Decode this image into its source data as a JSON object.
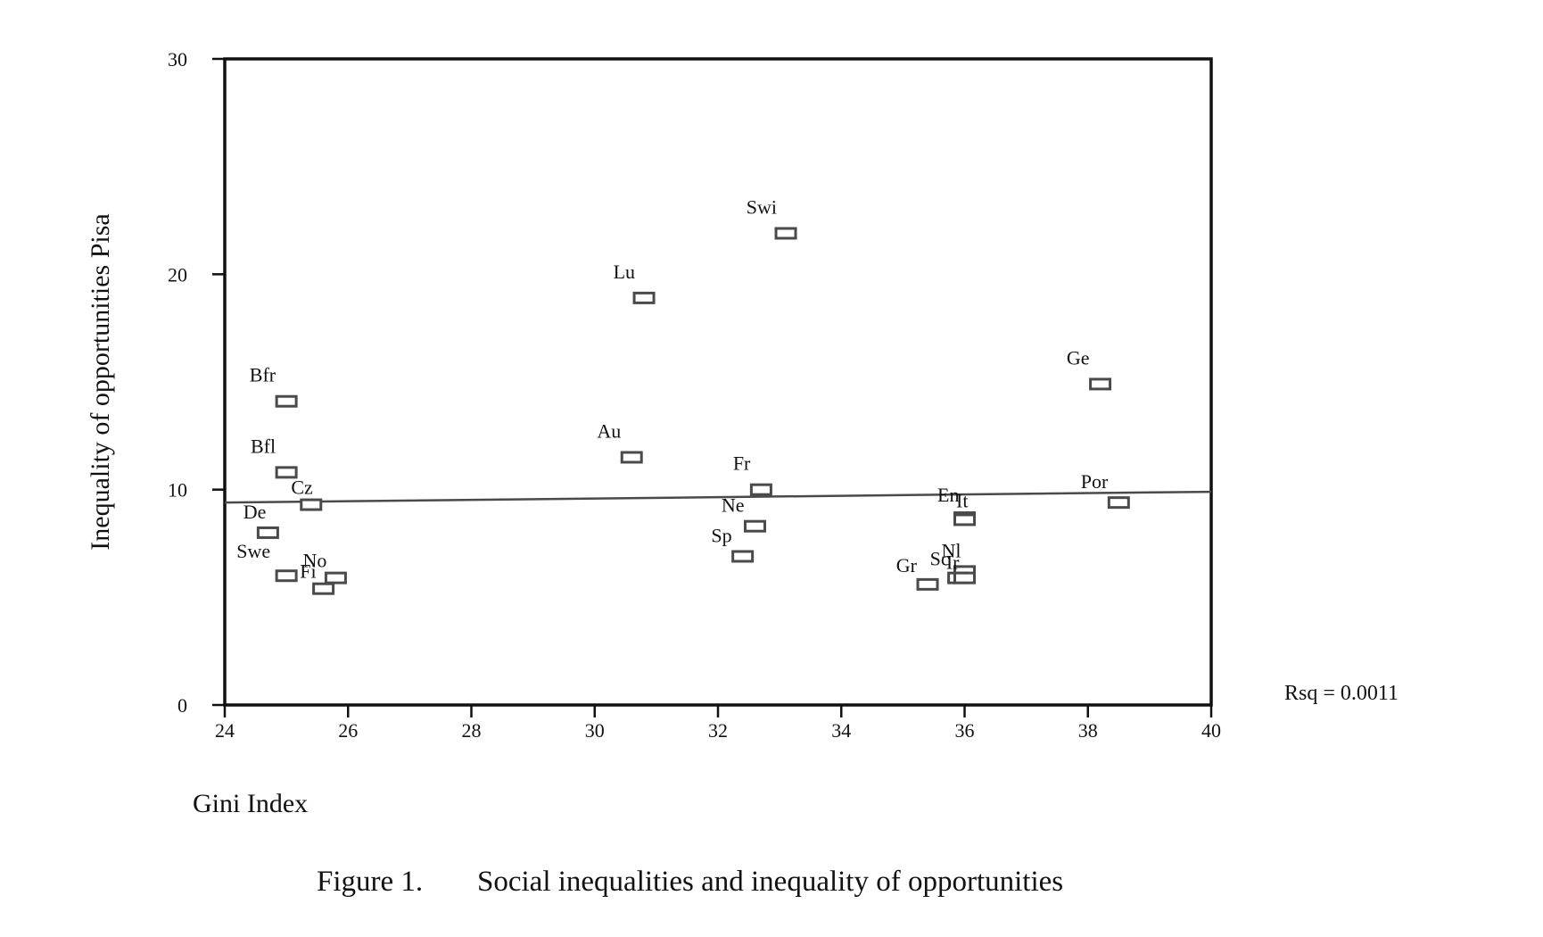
{
  "caption": {
    "figure_number": "Figure 1.",
    "title": "Social inequalities and inequality of opportunities"
  },
  "colors": {
    "axis": "#111111",
    "marker": "#4a4a4a",
    "fit_line": "#4a4a4a"
  },
  "chart_data": {
    "type": "scatter",
    "title": "Social inequalities and inequality of opportunities",
    "xlabel": "Gini Index",
    "ylabel": "Inequality of opportunities Pisa",
    "xlim": [
      24,
      40
    ],
    "ylim": [
      0,
      30
    ],
    "xticks": [
      24,
      26,
      28,
      30,
      32,
      34,
      36,
      38,
      40
    ],
    "yticks": [
      0,
      10,
      20,
      30
    ],
    "marker": "hollow-rectangle",
    "points": [
      {
        "label": "Swi",
        "x": 33.1,
        "y": 21.9
      },
      {
        "label": "Lu",
        "x": 30.8,
        "y": 18.9
      },
      {
        "label": "Ge",
        "x": 38.2,
        "y": 14.9
      },
      {
        "label": "Bfr",
        "x": 25.0,
        "y": 14.1
      },
      {
        "label": "Au",
        "x": 30.6,
        "y": 11.5
      },
      {
        "label": "Bfl",
        "x": 25.0,
        "y": 10.8
      },
      {
        "label": "Fr",
        "x": 32.7,
        "y": 10.0
      },
      {
        "label": "Cz",
        "x": 25.4,
        "y": 9.3
      },
      {
        "label": "Por",
        "x": 38.5,
        "y": 9.4
      },
      {
        "label": "En",
        "x": 36.0,
        "y": 8.7
      },
      {
        "label": "It",
        "x": 36.0,
        "y": 8.6
      },
      {
        "label": "Ne",
        "x": 32.6,
        "y": 8.3
      },
      {
        "label": "De",
        "x": 24.7,
        "y": 8.0
      },
      {
        "label": "Sp",
        "x": 32.4,
        "y": 6.9
      },
      {
        "label": "Nl",
        "x": 36.0,
        "y": 6.2
      },
      {
        "label": "Swe",
        "x": 25.0,
        "y": 6.0
      },
      {
        "label": "Sc",
        "x": 35.9,
        "y": 5.9
      },
      {
        "label": "Ir",
        "x": 36.0,
        "y": 5.9
      },
      {
        "label": "No",
        "x": 25.8,
        "y": 5.9
      },
      {
        "label": "Gr",
        "x": 35.4,
        "y": 5.6
      },
      {
        "label": "Fi",
        "x": 25.6,
        "y": 5.4
      }
    ],
    "fit_line": {
      "x": [
        24,
        40
      ],
      "y": [
        9.4,
        9.9
      ]
    },
    "annotation": "Rsq = 0.0011",
    "grid": false,
    "legend": "none"
  }
}
